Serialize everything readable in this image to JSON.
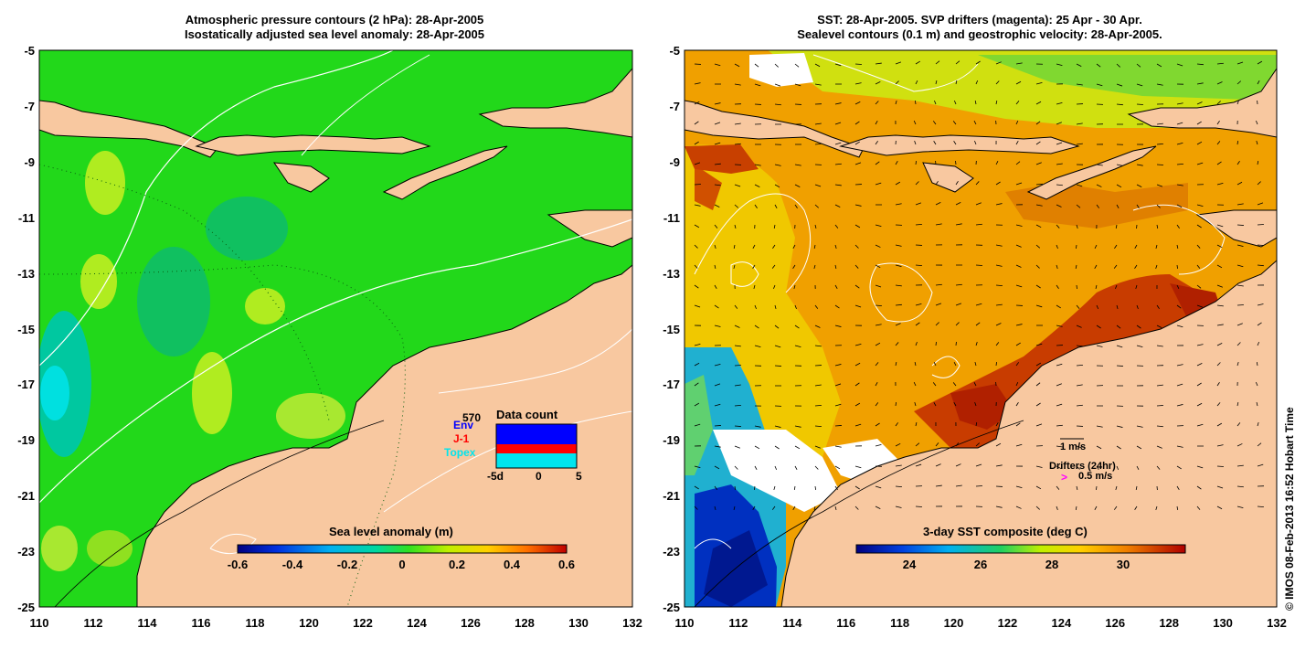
{
  "left_panel": {
    "title_line1": "Atmospheric pressure contours (2 hPa): 28-Apr-2005",
    "title_line2": "Isostatically adjusted sea level anomaly: 28-Apr-2005",
    "colorbar": {
      "label": "Sea level anomaly (m)",
      "ticks": [
        "-0.6",
        "-0.4",
        "-0.2",
        "0",
        "0.2",
        "0.4",
        "0.6"
      ]
    },
    "inset": {
      "title": "Data count",
      "max_label": "570",
      "legend": [
        {
          "label": "Env",
          "color": "#0000ff"
        },
        {
          "label": "J-1",
          "color": "#ff0000"
        },
        {
          "label": "Topex",
          "color": "#00e5ee"
        }
      ],
      "x_ticks": [
        "-5d",
        "0",
        "5"
      ]
    }
  },
  "right_panel": {
    "title_line1": "SST: 28-Apr-2005. SVP drifters (magenta): 25 Apr - 30 Apr.",
    "title_line2": "Sealevel contours (0.1 m) and geostrophic velocity: 28-Apr-2005.",
    "colorbar": {
      "label": "3-day SST composite (deg C)",
      "ticks": [
        "24",
        "26",
        "28",
        "30"
      ]
    },
    "velocity_key": "1 m/s",
    "drifters_label": "Drifters (24hr)",
    "drifter_speed": "0.5 m/s",
    "drifter_symbol": ">"
  },
  "axes": {
    "x_ticks": [
      "110",
      "112",
      "114",
      "116",
      "118",
      "120",
      "122",
      "124",
      "126",
      "128",
      "130",
      "132"
    ],
    "y_ticks": [
      "-5",
      "-7",
      "-9",
      "-11",
      "-13",
      "-15",
      "-17",
      "-19",
      "-21",
      "-23",
      "-25"
    ]
  },
  "credit": "© IMOS 08-Feb-2013 16:52 Hobart Time",
  "colors": {
    "land": "#f8c8a0",
    "ssl_background": "#22d81a",
    "sst_background": "#f0a000",
    "drifter_magenta": "#ff00ff"
  }
}
